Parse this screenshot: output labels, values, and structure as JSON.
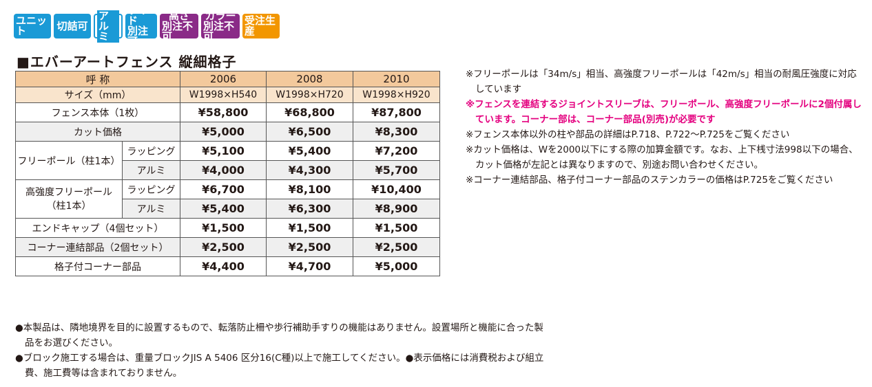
{
  "badges": [
    {
      "line1": "ユニット",
      "line2": "",
      "style": "blue"
    },
    {
      "line1": "切詰可",
      "line2": "",
      "style": "blue"
    },
    {
      "line1": "アルミ",
      "line2": "",
      "style": "outline"
    },
    {
      "line1": "ワイド",
      "line2": "別注可",
      "style": "blue"
    },
    {
      "line1": "高さ",
      "line2": "別注不可",
      "style": "purple"
    },
    {
      "line1": "カラー",
      "line2": "別注不可",
      "style": "purple"
    },
    {
      "line1": "受注生産",
      "line2": "",
      "style": "orange"
    }
  ],
  "colors": {
    "blue": "#1a9ad6",
    "purple": "#8a2a87",
    "orange": "#f29600",
    "header": "#f3c99c",
    "pink": "#e4007f"
  },
  "title": "■エバーアートフェンス 縦細格子",
  "table": {
    "header": {
      "label": "呼 称",
      "cols": [
        "2006",
        "2008",
        "2010"
      ]
    },
    "size": {
      "label": "サイズ（mm）",
      "cols": [
        "W1998×H540",
        "W1998×H720",
        "W1998×H920"
      ]
    },
    "fence_body": {
      "label": "フェンス本体（1枚）",
      "vals": [
        "¥58,800",
        "¥68,800",
        "¥87,800"
      ]
    },
    "cut_price": {
      "label": "カット価格",
      "vals": [
        "¥5,000",
        "¥6,500",
        "¥8,300"
      ]
    },
    "free_pole": {
      "label": "フリーポール（柱1本）",
      "wrap": {
        "label": "ラッピング",
        "vals": [
          "¥5,100",
          "¥5,400",
          "¥7,200"
        ]
      },
      "alumi": {
        "label": "アルミ",
        "vals": [
          "¥4,000",
          "¥4,300",
          "¥5,700"
        ]
      }
    },
    "hs_pole": {
      "label1": "高強度フリーポール",
      "label2": "（柱1本）",
      "wrap": {
        "label": "ラッピング",
        "vals": [
          "¥6,700",
          "¥8,100",
          "¥10,400"
        ]
      },
      "alumi": {
        "label": "アルミ",
        "vals": [
          "¥5,400",
          "¥6,300",
          "¥8,900"
        ]
      }
    },
    "end_cap": {
      "label": "エンドキャップ（4個セット）",
      "vals": [
        "¥1,500",
        "¥1,500",
        "¥1,500"
      ]
    },
    "corner_joint": {
      "label": "コーナー連結部品（2個セット）",
      "vals": [
        "¥2,500",
        "¥2,500",
        "¥2,500"
      ]
    },
    "lattice_corner": {
      "label": "格子付コーナー部品",
      "vals": [
        "¥4,400",
        "¥4,700",
        "¥5,000"
      ]
    }
  },
  "notes": [
    {
      "text": "※フリーポールは「34m/s」相当、高強度フリーポールは「42m/s」相当の耐風圧強度に対応しています",
      "pink": false
    },
    {
      "text": "※フェンスを連結するジョイントスリーブは、フリーポール、高強度フリーポールに2個付属しています。コーナー部は、コーナー部品(別売)が必要です",
      "pink": true
    },
    {
      "text": "※フェンス本体以外の柱や部品の詳細はP.718、P.722〜P.725をご覧ください",
      "pink": false
    },
    {
      "text": "※カット価格は、Wを2000以下にする際の加算金額です。なお、上下桟寸法998以下の場合、カット価格が左記とは異なりますので、別途お問い合わせください。",
      "pink": false
    },
    {
      "text": "※コーナー連結部品、格子付コーナー部品のステンカラーの価格はP.725をご覧ください",
      "pink": false
    }
  ],
  "footer": [
    "●本製品は、隣地境界を目的に設置するもので、転落防止柵や歩行補助手すりの機能はありません。設置場所と機能に合った製品をお選びください。",
    "●ブロック施工する場合は、重量ブロックJIS A 5406 区分16(C種)以上で施工してください。●表示価格には消費税および組立費、施工費等は含まれておりません。"
  ]
}
